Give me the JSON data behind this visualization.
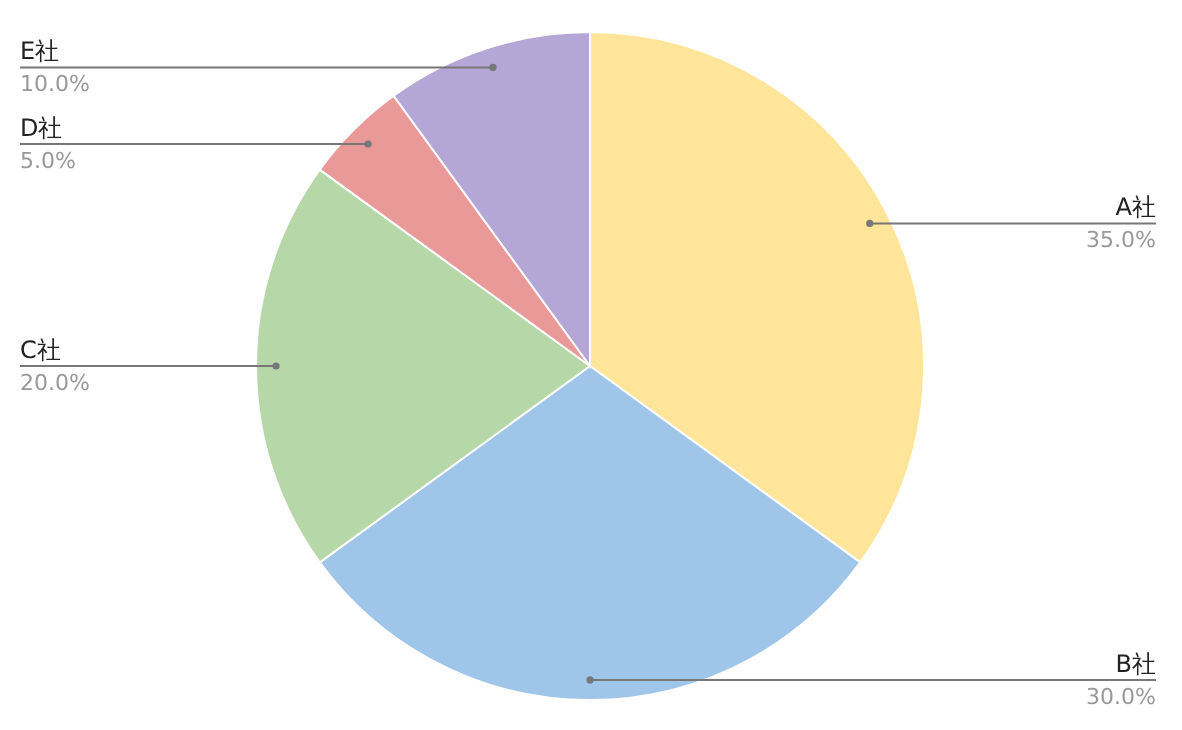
{
  "chart_data": {
    "type": "pie",
    "categories": [
      "A社",
      "B社",
      "C社",
      "D社",
      "E社"
    ],
    "values": [
      35,
      30,
      20,
      5,
      10
    ],
    "colors": [
      "#ffe599",
      "#9fc5e8",
      "#b6d7a8",
      "#ea9999",
      "#b4a7d6"
    ],
    "value_labels": [
      "35.0%",
      "30.0%",
      "20.0%",
      "5.0%",
      "10.0%"
    ]
  }
}
